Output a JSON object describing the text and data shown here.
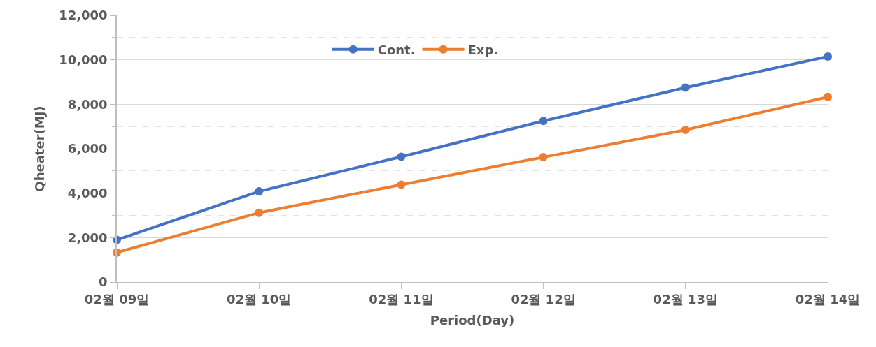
{
  "chart_data": {
    "type": "line",
    "xlabel": "Period(Day)",
    "ylabel": "Qheater(MJ)",
    "categories": [
      "02월 09일",
      "02월 10일",
      "02월 11일",
      "02월 12일",
      "02월 13일",
      "02월 14일"
    ],
    "series": [
      {
        "name": "Cont.",
        "color": "#4472c4",
        "values": [
          1900,
          4080,
          5640,
          7250,
          8750,
          10150
        ]
      },
      {
        "name": "Exp.",
        "color": "#ed7d31",
        "values": [
          1330,
          3120,
          4380,
          5620,
          6850,
          8330
        ]
      }
    ],
    "ylim": [
      0,
      12000
    ],
    "yticks": [
      {
        "value": 0,
        "label": "0"
      },
      {
        "value": 2000,
        "label": "2,000"
      },
      {
        "value": 4000,
        "label": "4,000"
      },
      {
        "value": 6000,
        "label": "6,000"
      },
      {
        "value": 8000,
        "label": "8,000"
      },
      {
        "value": 10000,
        "label": "10,000"
      },
      {
        "value": 12000,
        "label": "12,000"
      }
    ],
    "grid": "y",
    "legend": "top",
    "marker": "circle",
    "line_style": "solid"
  }
}
